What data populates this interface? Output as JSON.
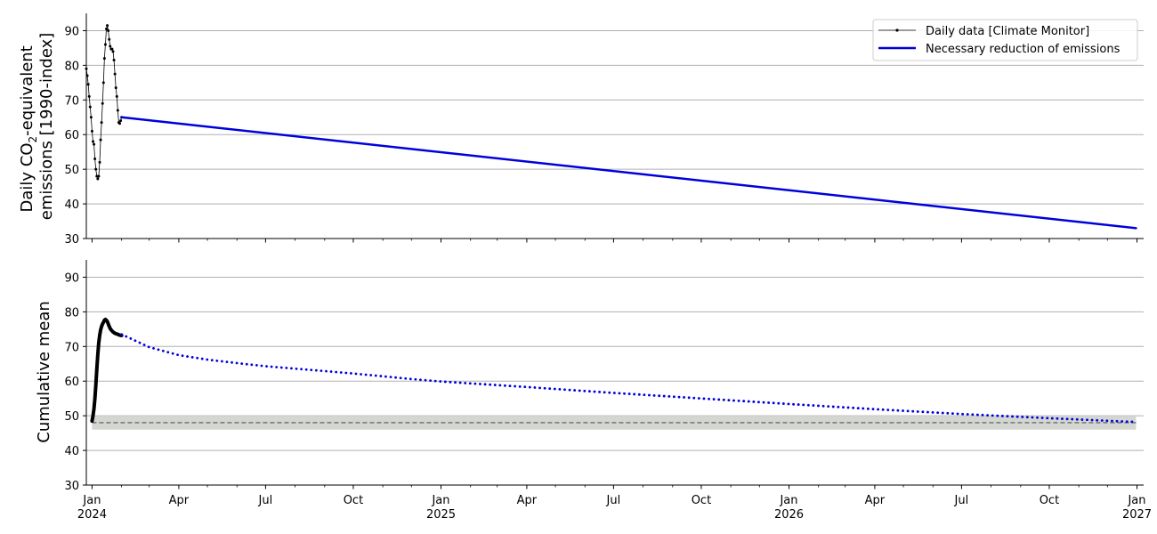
{
  "chart_data": [
    {
      "type": "line",
      "ylabel": "Daily CO₂-equivalent emissions [1990-index]",
      "ylabel_lines": [
        "Daily CO",
        "2",
        "-equivalent",
        "emissions [1990-index]"
      ],
      "ylim": [
        30,
        95
      ],
      "yticks": [
        30,
        40,
        50,
        60,
        70,
        80,
        90
      ],
      "xlim": [
        "2023-12-26",
        "2027-01-08"
      ],
      "grid": "y",
      "legend_position": "top-right",
      "series": [
        {
          "name": "Daily data [Climate Monitor]",
          "color": "#000000",
          "style": "line-with-dot-markers",
          "x": [
            "2023-12-26",
            "2023-12-27",
            "2023-12-28",
            "2023-12-29",
            "2023-12-30",
            "2023-12-31",
            "2024-01-01",
            "2024-01-02",
            "2024-01-03",
            "2024-01-04",
            "2024-01-05",
            "2024-01-06",
            "2024-01-07",
            "2024-01-08",
            "2024-01-09",
            "2024-01-10",
            "2024-01-11",
            "2024-01-12",
            "2024-01-13",
            "2024-01-14",
            "2024-01-15",
            "2024-01-16",
            "2024-01-17",
            "2024-01-18",
            "2024-01-19",
            "2024-01-20",
            "2024-01-21",
            "2024-01-22",
            "2024-01-23",
            "2024-01-24",
            "2024-01-25",
            "2024-01-26",
            "2024-01-27",
            "2024-01-28",
            "2024-01-29",
            "2024-01-30",
            "2024-01-31",
            "2024-02-01"
          ],
          "y": [
            79.0,
            77.0,
            74.5,
            71.0,
            68.0,
            65.0,
            61.0,
            58.0,
            57.2,
            53.0,
            50.0,
            48.0,
            47.2,
            48.0,
            52.0,
            58.5,
            63.5,
            69.0,
            75.0,
            82.0,
            86.0,
            90.5,
            91.5,
            90.0,
            87.5,
            85.5,
            84.7,
            84.7,
            84.0,
            81.5,
            77.5,
            73.5,
            71.0,
            67.0,
            63.5,
            63.2,
            64.0,
            65.0
          ]
        },
        {
          "name": "Necessary reduction of emissions",
          "color": "#0000dd",
          "style": "solid",
          "x": [
            "2024-02-01",
            "2026-12-31"
          ],
          "y": [
            65.0,
            33.0
          ]
        }
      ]
    },
    {
      "type": "line",
      "ylabel": "Cumulative mean",
      "ylim": [
        30,
        95
      ],
      "yticks": [
        30,
        40,
        50,
        60,
        70,
        80,
        90
      ],
      "xlim": [
        "2023-12-26",
        "2027-01-08"
      ],
      "xticks": [
        {
          "date": "2024-01-01",
          "label": "Jan",
          "year": "2024"
        },
        {
          "date": "2024-04-01",
          "label": "Apr",
          "year": ""
        },
        {
          "date": "2024-07-01",
          "label": "Jul",
          "year": ""
        },
        {
          "date": "2024-10-01",
          "label": "Oct",
          "year": ""
        },
        {
          "date": "2025-01-01",
          "label": "Jan",
          "year": "2025"
        },
        {
          "date": "2025-04-01",
          "label": "Apr",
          "year": ""
        },
        {
          "date": "2025-07-01",
          "label": "Jul",
          "year": ""
        },
        {
          "date": "2025-10-01",
          "label": "Oct",
          "year": ""
        },
        {
          "date": "2026-01-01",
          "label": "Jan",
          "year": "2026"
        },
        {
          "date": "2026-04-01",
          "label": "Apr",
          "year": ""
        },
        {
          "date": "2026-07-01",
          "label": "Jul",
          "year": ""
        },
        {
          "date": "2026-10-01",
          "label": "Oct",
          "year": ""
        },
        {
          "date": "2027-01-01",
          "label": "Jan",
          "year": "2027"
        }
      ],
      "grid": "y",
      "target_band": {
        "x": [
          "2024-01-01",
          "2026-12-31"
        ],
        "y": [
          46,
          50
        ],
        "color": "#d3d6d1"
      },
      "target_line": {
        "x": [
          "2024-01-01",
          "2026-12-31"
        ],
        "y": 48.0,
        "color": "#555555",
        "style": "dashed"
      },
      "series": [
        {
          "color": "#000000",
          "style": "thick-solid",
          "x": [
            "2024-01-01",
            "2024-01-02",
            "2024-01-03",
            "2024-01-04",
            "2024-01-05",
            "2024-01-06",
            "2024-01-07",
            "2024-01-08",
            "2024-01-09",
            "2024-01-10",
            "2024-01-11",
            "2024-01-12",
            "2024-01-13",
            "2024-01-14",
            "2024-01-15",
            "2024-01-16",
            "2024-01-17",
            "2024-01-18",
            "2024-01-19",
            "2024-01-20",
            "2024-01-21",
            "2024-01-22",
            "2024-01-23",
            "2024-01-24",
            "2024-01-25",
            "2024-01-26",
            "2024-01-27",
            "2024-01-28",
            "2024-01-29",
            "2024-01-30",
            "2024-01-31",
            "2024-02-01"
          ],
          "y": [
            48.5,
            50.0,
            52.0,
            55.0,
            59.0,
            63.5,
            67.5,
            71.0,
            73.2,
            74.8,
            75.8,
            76.5,
            77.0,
            77.6,
            77.8,
            77.6,
            77.2,
            76.5,
            75.8,
            75.2,
            74.8,
            74.5,
            74.2,
            74.0,
            73.8,
            73.7,
            73.6,
            73.5,
            73.4,
            73.3,
            73.2,
            73.2
          ]
        },
        {
          "color": "#0000dd",
          "style": "dotted",
          "x": [
            "2024-02-01",
            "2024-03-01",
            "2024-04-01",
            "2024-05-01",
            "2024-06-01",
            "2024-07-01",
            "2024-08-01",
            "2024-09-01",
            "2024-10-01",
            "2024-11-01",
            "2024-12-01",
            "2025-01-01",
            "2025-04-01",
            "2025-07-01",
            "2025-10-01",
            "2026-01-01",
            "2026-04-01",
            "2026-07-01",
            "2026-10-01",
            "2026-12-31"
          ],
          "y": [
            73.5,
            69.8,
            67.5,
            66.2,
            65.2,
            64.3,
            63.6,
            62.9,
            62.2,
            61.4,
            60.6,
            59.9,
            58.3,
            56.6,
            55.0,
            53.4,
            51.9,
            50.5,
            49.3,
            48.2
          ]
        }
      ]
    }
  ]
}
